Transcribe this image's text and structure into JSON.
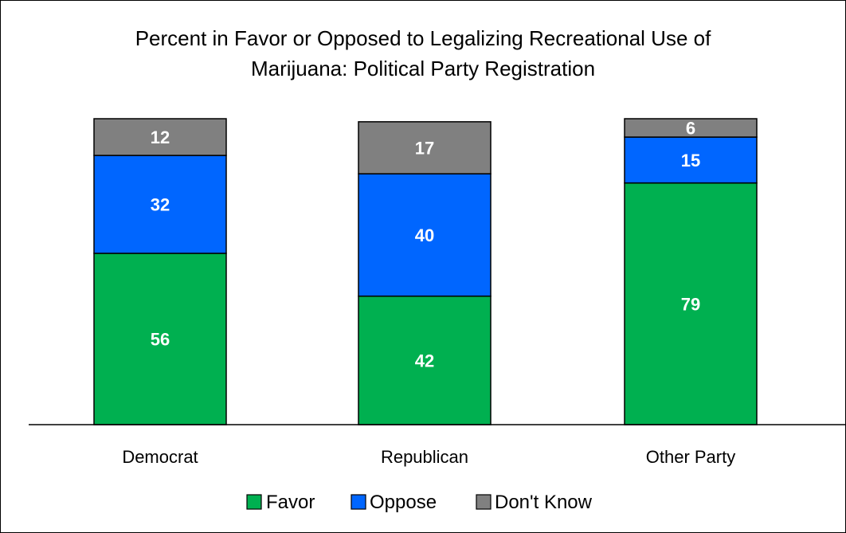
{
  "chart_data": {
    "type": "bar",
    "stacked": true,
    "title_lines": [
      "Percent in Favor or Opposed to Legalizing Recreational Use of",
      "Marijuana: Political Party Registration"
    ],
    "categories": [
      "Democrat",
      "Republican",
      "Other Party"
    ],
    "series": [
      {
        "name": "Favor",
        "values": [
          56,
          42,
          79
        ],
        "color": "#00b050"
      },
      {
        "name": "Oppose",
        "values": [
          32,
          40,
          15
        ],
        "color": "#0066ff"
      },
      {
        "name": "Don't Know",
        "values": [
          12,
          17,
          6
        ],
        "color": "#808080"
      }
    ],
    "ylim": [
      0,
      100
    ],
    "grid": false,
    "legend_position": "bottom"
  }
}
